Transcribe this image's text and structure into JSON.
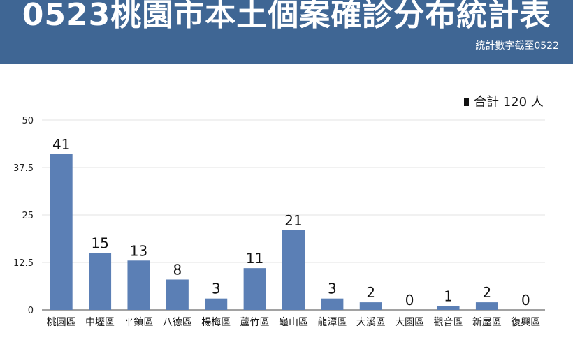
{
  "header": {
    "title": "0523桃園市本土個案確診分布統計表",
    "subtitle": "統計數字截至0522"
  },
  "colors": {
    "header_bg": "#3f6694",
    "bar": "#5b7fb5",
    "grid": "#e3e3e3",
    "axis": "#444444"
  },
  "chart_data": {
    "type": "bar",
    "title": "",
    "xlabel": "",
    "ylabel": "",
    "categories": [
      "桃園區",
      "中壢區",
      "平鎮區",
      "八德區",
      "楊梅區",
      "蘆竹區",
      "龜山區",
      "龍潭區",
      "大溪區",
      "大園區",
      "觀音區",
      "新屋區",
      "復興區"
    ],
    "series": [
      {
        "name": "合計 120 人",
        "values": [
          41,
          15,
          13,
          8,
          3,
          11,
          21,
          3,
          2,
          0,
          1,
          2,
          0
        ]
      }
    ],
    "ylim": [
      0,
      50
    ],
    "yticks": [
      0,
      12.5,
      25,
      37.5,
      50
    ],
    "grid": true,
    "legend_position": "top-right",
    "data_labels": true
  }
}
